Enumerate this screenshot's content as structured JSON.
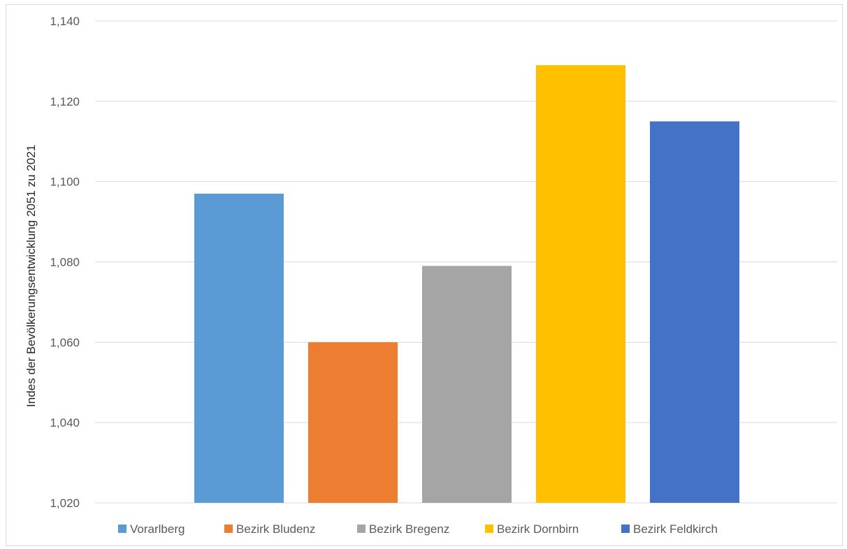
{
  "chart_data": {
    "type": "bar",
    "categories": [
      "Vorarlberg",
      "Bezirk Bludenz",
      "Bezirk Bregenz",
      "Bezirk Dornbirn",
      "Bezirk Feldkirch"
    ],
    "values": [
      1.097,
      1.06,
      1.079,
      1.129,
      1.115
    ],
    "colors": [
      "#5b9bd5",
      "#ed7d31",
      "#a5a5a5",
      "#ffc000",
      "#4472c4"
    ],
    "ylabel": "Indes der Bevölkerungsentwicklung 2051 zu 2021",
    "ylim": [
      1.02,
      1.14
    ],
    "yticks": [
      1.02,
      1.04,
      1.06,
      1.08,
      1.1,
      1.12,
      1.14
    ],
    "ytick_labels": [
      "1,020",
      "1,040",
      "1,060",
      "1,080",
      "1,100",
      "1,120",
      "1,140"
    ],
    "grid": true,
    "legend": {
      "position": "bottom",
      "entries": [
        "Vorarlberg",
        "Bezirk Bludenz",
        "Bezirk Bregenz",
        "Bezirk Dornbirn",
        "Bezirk Feldkirch"
      ]
    }
  }
}
